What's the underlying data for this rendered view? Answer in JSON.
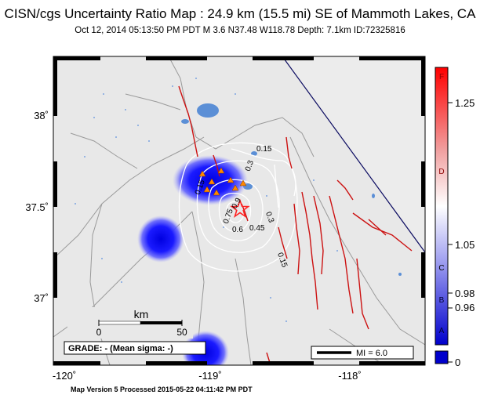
{
  "title": "CISN/cgs Uncertainty Ratio Map : 24.9 km (15.5 mi) SE of Mammoth Lakes, CA",
  "event_line": "Oct 12, 2014 05:13:50 PM PDT    M 3.6    N37.48 W118.78    Depth: 7.1km    ID:72325816",
  "footer": "Map Version 5 Processed 2015-05-22 04:11:42 PM PDT",
  "axes": {
    "x_ticks": [
      {
        "value": -120,
        "label": "-120˚"
      },
      {
        "value": -119,
        "label": "-119˚"
      },
      {
        "value": -118,
        "label": "-118˚"
      }
    ],
    "y_ticks": [
      {
        "value": 38,
        "label": "38˚"
      },
      {
        "value": 37.5,
        "label": "37.5˚"
      },
      {
        "value": 37,
        "label": "37˚"
      }
    ],
    "lon_range": [
      -120.25,
      -117.55
    ],
    "lat_range": [
      36.63,
      38.3
    ]
  },
  "contours": [
    {
      "label": "0.15"
    },
    {
      "label": "0.3"
    },
    {
      "label": "0.15"
    },
    {
      "label": "0.9"
    },
    {
      "label": "0.75"
    },
    {
      "label": "0.6"
    },
    {
      "label": "0.45"
    },
    {
      "label": "0.3"
    },
    {
      "label": "0.15"
    }
  ],
  "scale_bar": {
    "title": "km",
    "left_label": "0",
    "right_label": "50"
  },
  "grade_label": "GRADE: - (Mean sigma: -)",
  "mi_legend": "MI = 6.0",
  "colorbar": {
    "ticks": [
      {
        "value": 0,
        "label": "0"
      },
      {
        "value": 0.96,
        "label": "0.96"
      },
      {
        "value": 0.98,
        "label": "0.98"
      },
      {
        "value": 1.05,
        "label": "1.05"
      },
      {
        "value": 1.25,
        "label": "1.25"
      }
    ],
    "letters": [
      "A",
      "B",
      "C",
      "D",
      "F"
    ],
    "colors": {
      "low": "#0000cc",
      "mid": "#ffffff",
      "high": "#ff0000"
    }
  },
  "colors": {
    "land": "#e8e8e8",
    "water": "#5b8fd6",
    "fault": "#cc1111",
    "road": "#9a9a9a",
    "contour": "#ffffff",
    "uncertainty_blob": "#1a1aff",
    "epicenter": "#ff2222",
    "station": "#ff8800"
  }
}
